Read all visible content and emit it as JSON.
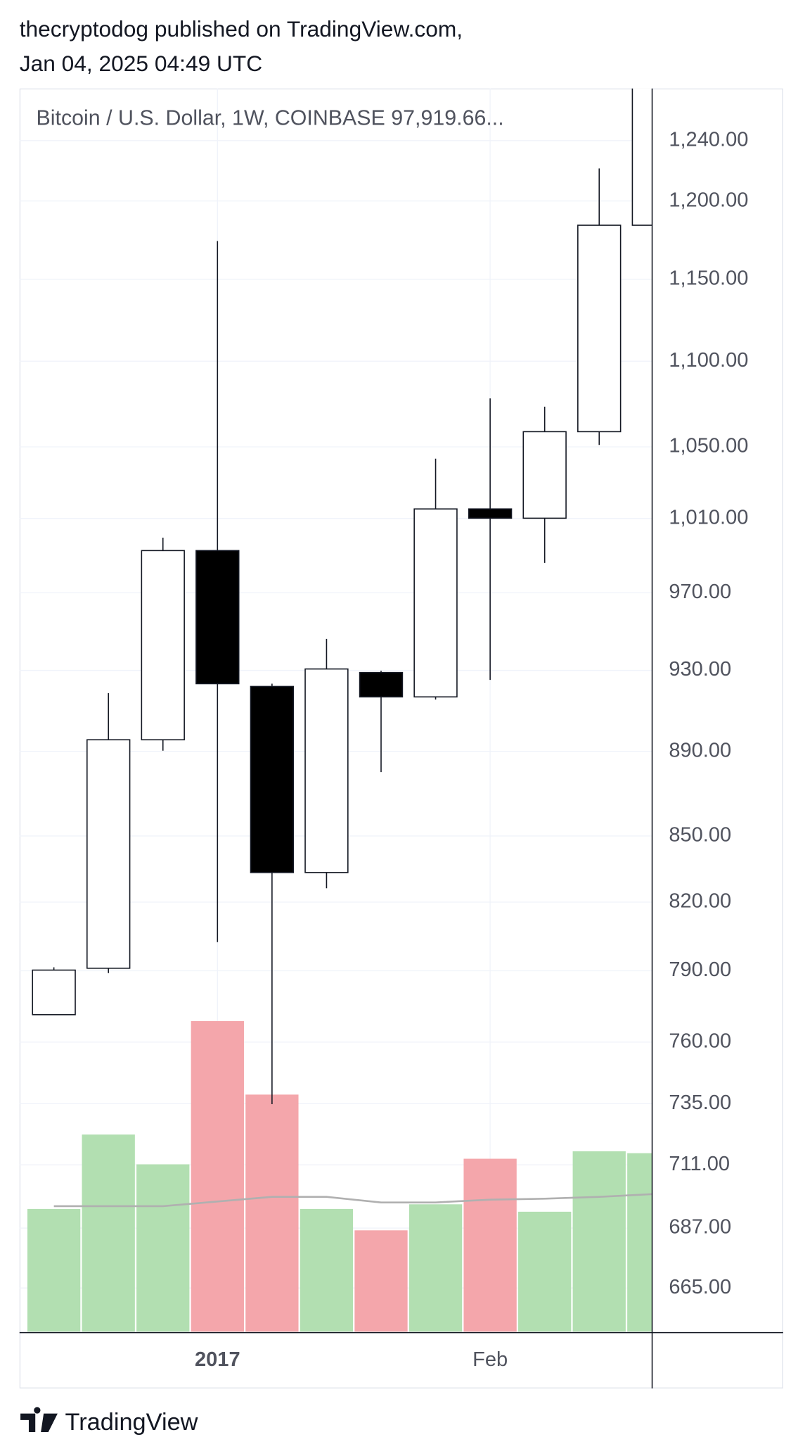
{
  "header": {
    "publisher": "thecryptodog published on TradingView.com,",
    "date": "Jan 04, 2025 04:49 UTC"
  },
  "footer": {
    "brand": "TradingView"
  },
  "chart_data": {
    "type": "candlestick",
    "title": "Bitcoin / U.S. Dollar, 1W, COINBASE  97,919.66...",
    "categories": [
      null,
      null,
      null,
      "2017",
      null,
      null,
      null,
      null,
      "Feb",
      null,
      null,
      null
    ],
    "open": [
      771.4,
      791.1,
      895.6,
      992.5,
      921.9,
      833.3,
      928.9,
      916.7,
      1015.2,
      1010.1,
      1058.7,
      1184.3
    ],
    "high": [
      791.5,
      918.6,
      999.5,
      1174.2,
      923.3,
      946.0,
      929.8,
      1043.3,
      1078.0,
      1073.2,
      1221.4,
      1300
    ],
    "low": [
      771.4,
      789.0,
      890.3,
      802.4,
      734.8,
      826.2,
      880.0,
      915.4,
      925.2,
      985.9,
      1051.1,
      1184.3
    ],
    "close": [
      790.3,
      895.6,
      992.5,
      923.3,
      833.3,
      930.7,
      916.7,
      1015.2,
      1010.1,
      1058.7,
      1184.3,
      1300
    ],
    "volume": [
      132,
      212,
      180,
      334,
      255,
      132,
      109,
      137,
      186,
      129,
      194,
      192
    ],
    "volume_ma": [
      135,
      135,
      135,
      140,
      145,
      145,
      139,
      139,
      142,
      143,
      145,
      148
    ],
    "vlim": [
      0,
      1337
    ],
    "up_color": "#ffffff",
    "down_color": "#000000",
    "volume_up_color": "#b2dfb1",
    "volume_down_color": "#f4a6ab",
    "volume_ma_color": "#b0b0b0",
    "log_scale": true,
    "grid": true,
    "ylim": [
      649.4,
      1275.6
    ],
    "yticks": [
      {
        "value": 665,
        "label": "665.00"
      },
      {
        "value": 687,
        "label": "687.00"
      },
      {
        "value": 711,
        "label": "711.00"
      },
      {
        "value": 735,
        "label": "735.00"
      },
      {
        "value": 760,
        "label": "760.00"
      },
      {
        "value": 790,
        "label": "790.00"
      },
      {
        "value": 820,
        "label": "820.00"
      },
      {
        "value": 850,
        "label": "850.00"
      },
      {
        "value": 890,
        "label": "890.00"
      },
      {
        "value": 930,
        "label": "930.00"
      },
      {
        "value": 970,
        "label": "970.00"
      },
      {
        "value": 1010,
        "label": "1,010.00"
      },
      {
        "value": 1050,
        "label": "1,050.00"
      },
      {
        "value": 1100,
        "label": "1,100.00"
      },
      {
        "value": 1150,
        "label": "1,150.00"
      },
      {
        "value": 1200,
        "label": "1,200.00"
      },
      {
        "value": 1240,
        "label": "1,240.00"
      }
    ]
  }
}
